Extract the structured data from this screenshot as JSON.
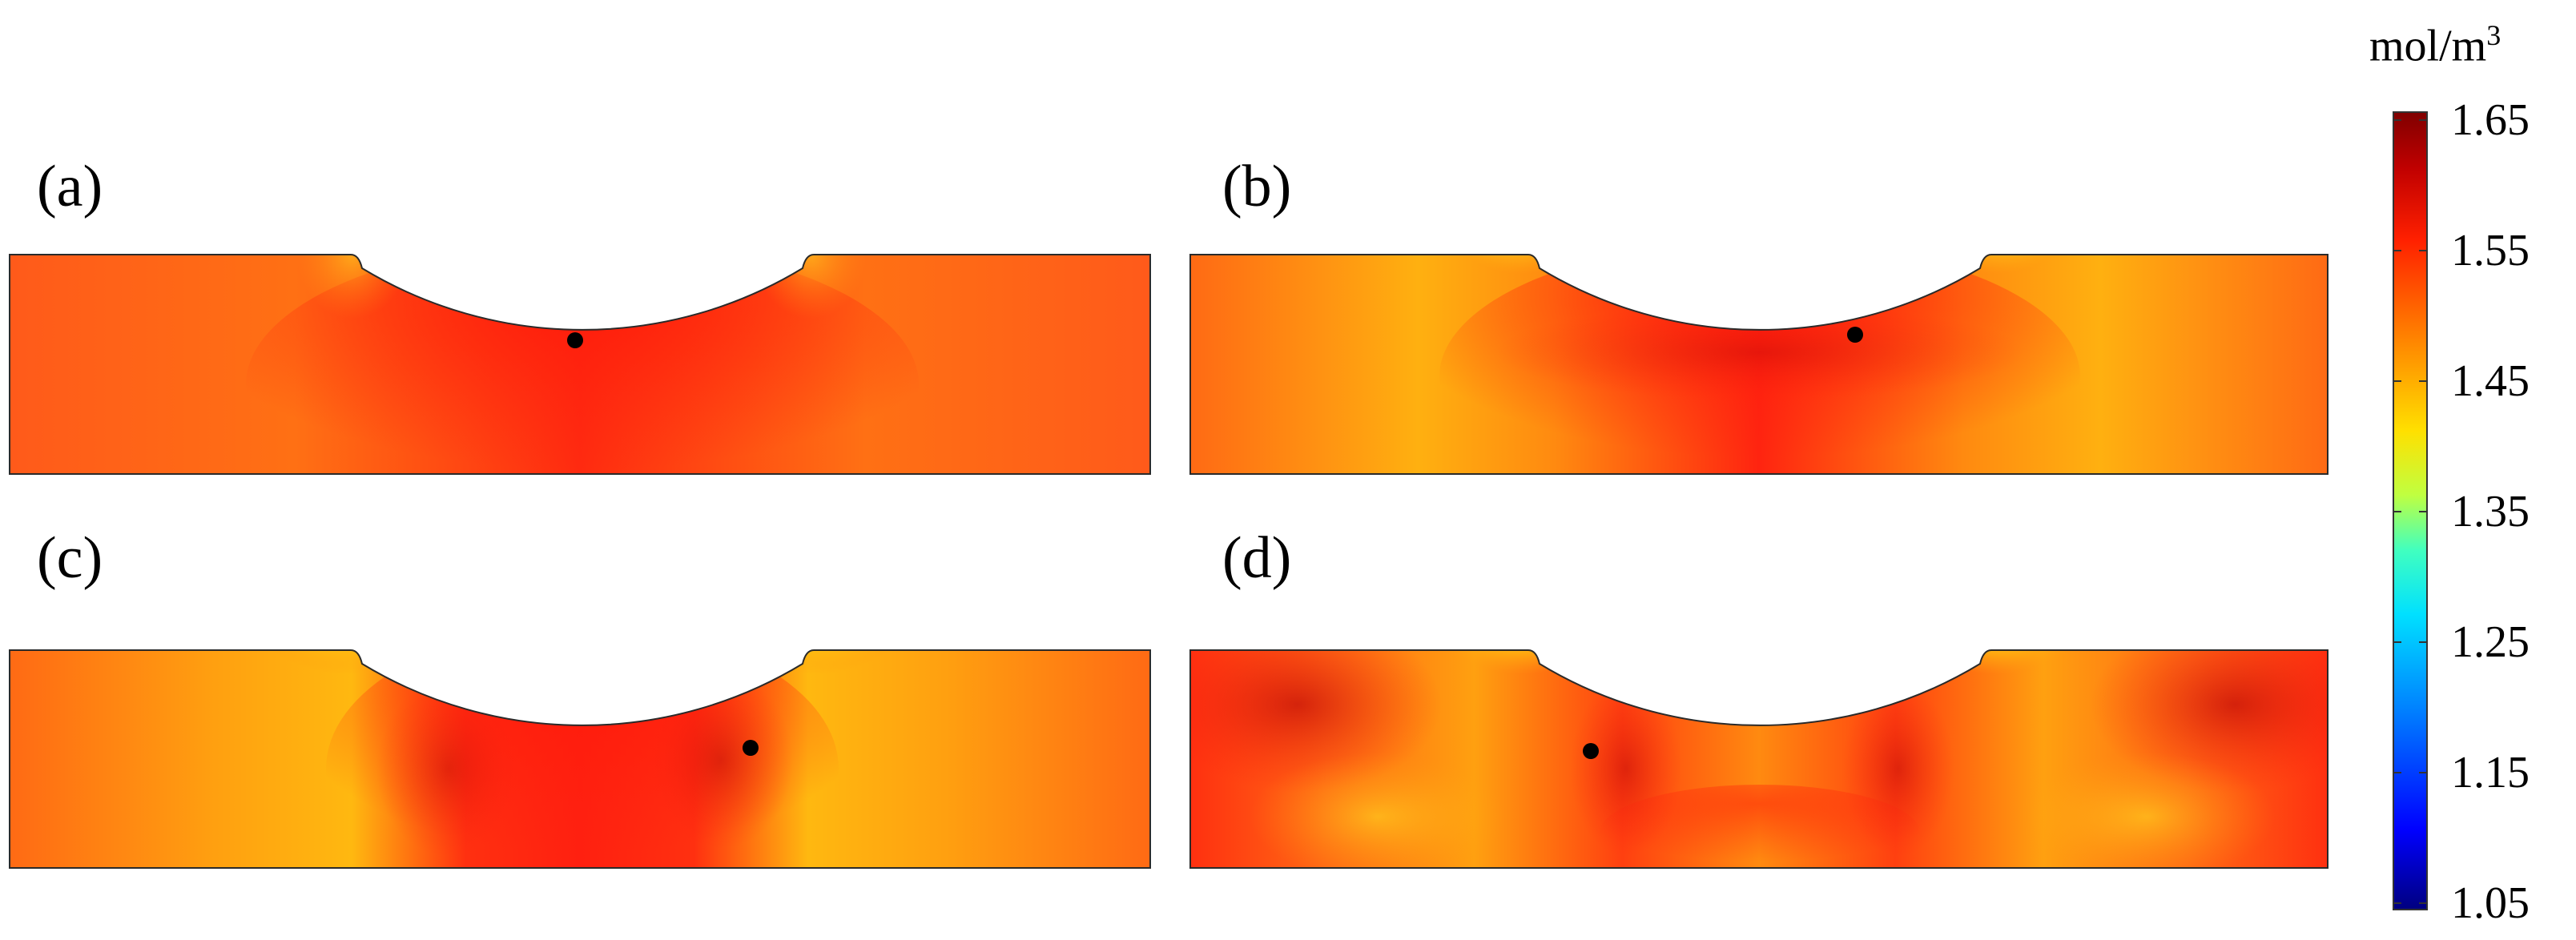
{
  "colorbar": {
    "unit": "mol/m",
    "unit_superscript": "3",
    "ticks": [
      "1.65",
      "1.55",
      "1.45",
      "1.35",
      "1.25",
      "1.15",
      "1.05"
    ],
    "min": 1.05,
    "max": 1.65,
    "colormap": [
      "#00007f",
      "#0000ff",
      "#0080ff",
      "#00e0ff",
      "#40ffc0",
      "#c0ff40",
      "#ffe000",
      "#ff8000",
      "#ff2000",
      "#c00000",
      "#800000"
    ]
  },
  "panels": [
    {
      "label": "(a)"
    },
    {
      "label": "(b)"
    },
    {
      "label": "(c)"
    },
    {
      "label": "(d)"
    }
  ]
}
